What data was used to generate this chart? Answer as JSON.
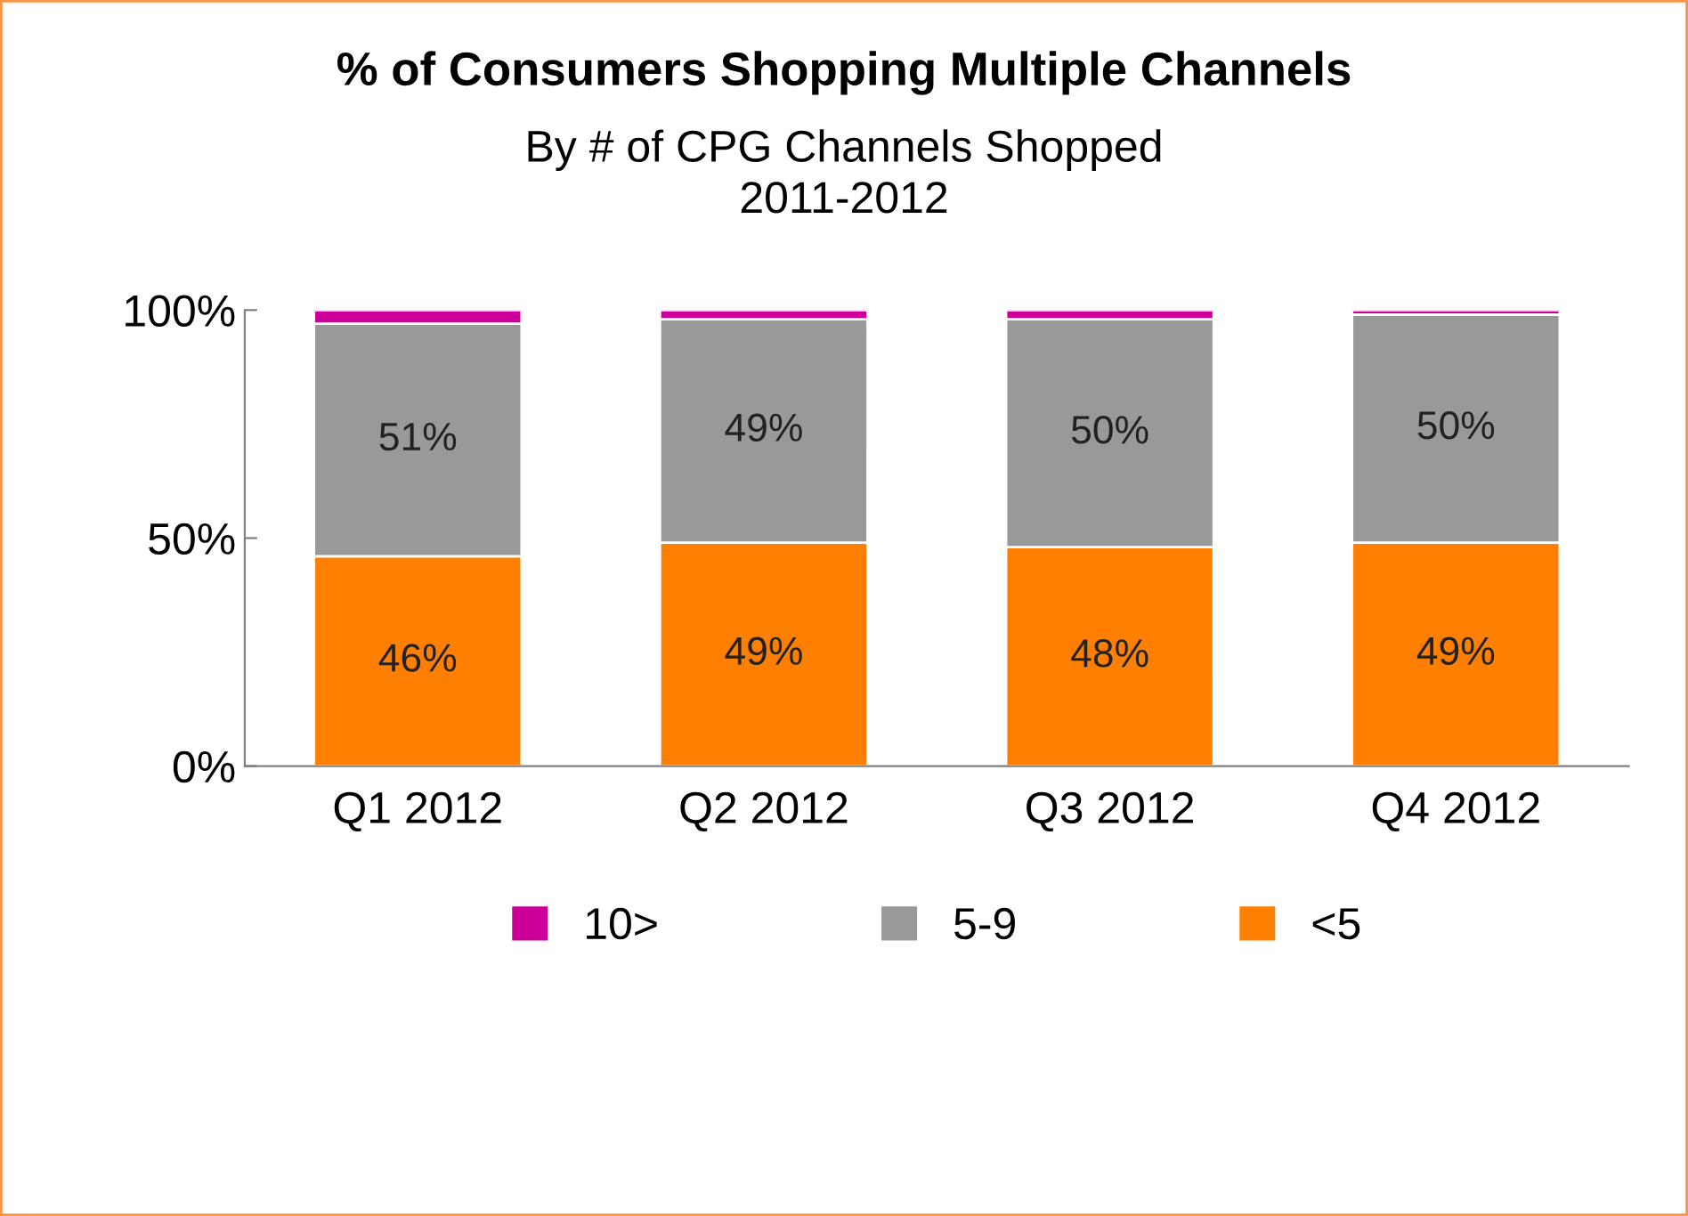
{
  "chart_data": {
    "type": "bar",
    "title": "% of Consumers Shopping Multiple Channels",
    "subtitle": "By # of CPG Channels Shopped\n2011-2012",
    "categories": [
      "Q1 2012",
      "Q2 2012",
      "Q3 2012",
      "Q4 2012"
    ],
    "stacked": true,
    "series": [
      {
        "name": "<5",
        "color": "#ff8000",
        "values": [
          46,
          49,
          48,
          49
        ],
        "value_labels": [
          "46%",
          "49%",
          "48%",
          "49%"
        ]
      },
      {
        "name": "5-9",
        "color": "#999999",
        "values": [
          51,
          49,
          50,
          50
        ],
        "value_labels": [
          "51%",
          "49%",
          "50%",
          "50%"
        ]
      },
      {
        "name": "10>",
        "color": "#cc0099",
        "values": [
          3,
          2,
          2,
          1
        ]
      }
    ],
    "ylim": [
      0,
      100
    ],
    "yticks": [
      {
        "value": 0,
        "label": "0%"
      },
      {
        "value": 50,
        "label": "50%"
      },
      {
        "value": 100,
        "label": "100%"
      }
    ],
    "grid": false,
    "legend": "bottom"
  }
}
